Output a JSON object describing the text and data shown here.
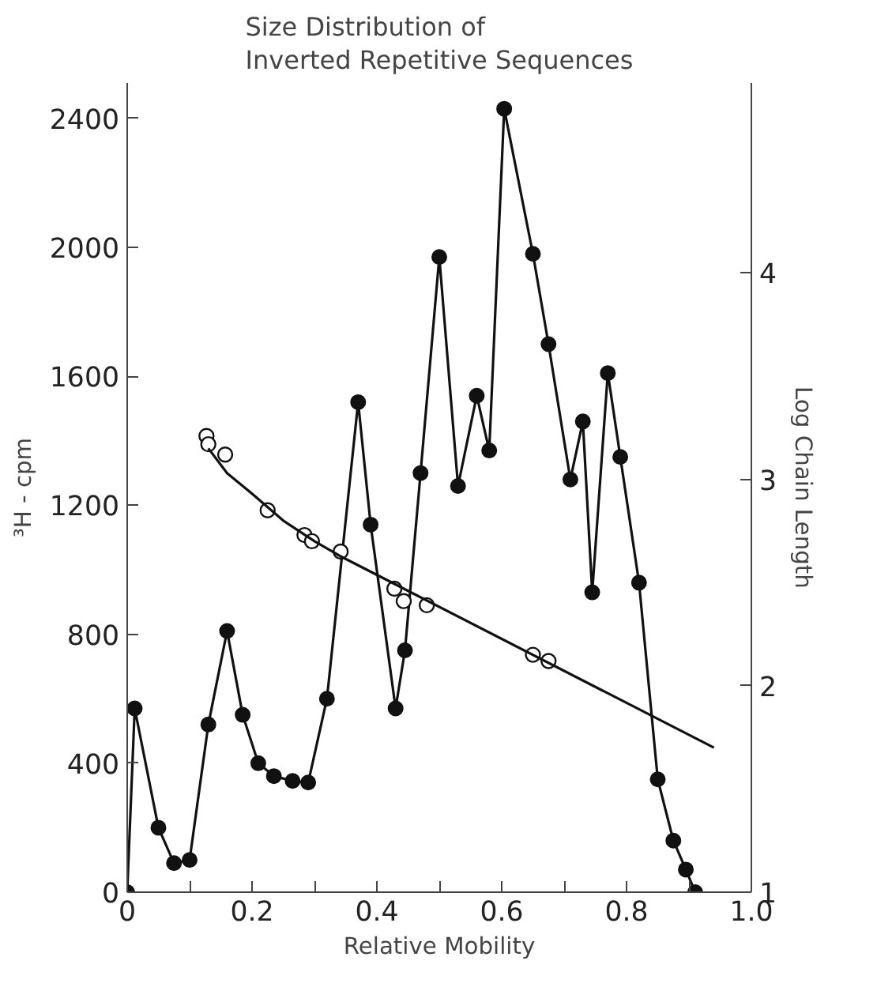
{
  "chart_data": {
    "type": "line",
    "title": "Size Distribution of\nInverted Repetitive Sequences",
    "xlabel": "Relative Mobility",
    "ylabel": "³H - cpm",
    "y2label": "Log Chain Length",
    "xlim": [
      0,
      1
    ],
    "xticks": [
      0,
      {
        "value": 0.1,
        "label": null
      },
      0.2,
      {
        "value": 0.3,
        "label": null
      },
      0.4,
      {
        "value": 0.5,
        "label": null
      },
      0.6,
      {
        "value": 0.7,
        "label": null
      },
      0.8,
      {
        "value": 0.9,
        "label": null
      },
      {
        "value": 1,
        "label": "1.0"
      }
    ],
    "ylim": [
      0,
      2510
    ],
    "yticks": [
      0,
      400,
      800,
      1200,
      1600,
      2000,
      2400
    ],
    "y2lim": [
      1,
      4.92
    ],
    "y2ticks": [
      1,
      2,
      3,
      4
    ],
    "grid": false,
    "marker": "circle",
    "line_style": "solid",
    "series": [
      {
        "color": "#111111",
        "x": [
          0,
          0.012,
          0.05,
          0.075,
          0.1,
          0.13,
          0.16,
          0.185,
          0.21,
          0.235,
          0.265,
          0.29,
          0.32,
          0.37,
          0.39,
          0.43,
          0.445,
          0.47,
          0.5,
          0.53,
          0.56,
          0.58,
          0.604,
          0.65,
          0.675,
          0.71,
          0.73,
          0.745,
          0.77,
          0.79,
          0.82,
          0.85,
          0.875,
          0.895,
          0.91
        ],
        "values": [
          0,
          570,
          200,
          90,
          100,
          520,
          810,
          550,
          400,
          360,
          345,
          340,
          600,
          1520,
          1140,
          570,
          750,
          1300,
          1970,
          1260,
          1540,
          1370,
          2430,
          1980,
          1700,
          1280,
          1460,
          930,
          1610,
          1350,
          960,
          350,
          160,
          70,
          0
        ]
      },
      {
        "type": "scatter",
        "color": "#111111",
        "axis": "y2",
        "x": [
          0.127,
          0.13,
          0.157,
          0.225,
          0.284,
          0.296,
          0.342,
          0.428,
          0.443,
          0.48,
          0.65,
          0.675
        ],
        "values": [
          3.21,
          3.17,
          3.12,
          2.85,
          2.73,
          2.7,
          2.65,
          2.47,
          2.41,
          2.39,
          2.15,
          2.12
        ]
      },
      {
        "type": "line",
        "color": "#111111",
        "axis": "y2",
        "marker": "none",
        "x": [
          0.13,
          0.16,
          0.2,
          0.25,
          0.3,
          0.34,
          0.94
        ],
        "values": [
          3.15,
          3.03,
          2.93,
          2.8,
          2.7,
          2.63,
          1.7
        ]
      }
    ]
  }
}
